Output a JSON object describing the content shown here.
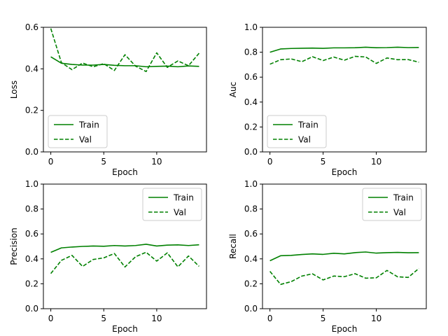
{
  "colors": {
    "series": "#008000",
    "axis": "#000000",
    "legend_frame": "#cccccc"
  },
  "chart_data": [
    {
      "type": "line",
      "xlabel": "Epoch",
      "ylabel": "Loss",
      "xlim": [
        -0.7,
        14.7
      ],
      "ylim": [
        0,
        0.6
      ],
      "xticks": [
        0,
        5,
        10
      ],
      "yticks": [
        0.0,
        0.2,
        0.4,
        0.6
      ],
      "ytick_labels": [
        "0.0",
        "0.2",
        "0.4",
        "0.6"
      ],
      "grid": false,
      "legend_position": "lower left",
      "x": [
        0,
        1,
        2,
        3,
        4,
        5,
        6,
        7,
        8,
        9,
        10,
        11,
        12,
        13,
        14
      ],
      "series": [
        {
          "name": "Train",
          "style": "solid",
          "values": [
            0.458,
            0.427,
            0.421,
            0.418,
            0.418,
            0.421,
            0.417,
            0.415,
            0.415,
            0.41,
            0.412,
            0.413,
            0.41,
            0.414,
            0.412
          ]
        },
        {
          "name": "Val",
          "style": "dashed",
          "values": [
            0.594,
            0.43,
            0.396,
            0.428,
            0.41,
            0.425,
            0.392,
            0.468,
            0.413,
            0.387,
            0.477,
            0.407,
            0.438,
            0.415,
            0.475
          ]
        }
      ]
    },
    {
      "type": "line",
      "xlabel": "Epoch",
      "ylabel": "Auc",
      "xlim": [
        -0.7,
        14.7
      ],
      "ylim": [
        0,
        1
      ],
      "xticks": [
        0,
        5,
        10
      ],
      "yticks": [
        0.0,
        0.2,
        0.4,
        0.6,
        0.8,
        1.0
      ],
      "ytick_labels": [
        "0.0",
        "0.2",
        "0.4",
        "0.6",
        "0.8",
        "1.0"
      ],
      "grid": false,
      "legend_position": "lower left",
      "x": [
        0,
        1,
        2,
        3,
        4,
        5,
        6,
        7,
        8,
        9,
        10,
        11,
        12,
        13,
        14
      ],
      "series": [
        {
          "name": "Train",
          "style": "solid",
          "values": [
            0.8,
            0.826,
            0.83,
            0.832,
            0.833,
            0.831,
            0.835,
            0.835,
            0.836,
            0.84,
            0.836,
            0.837,
            0.84,
            0.837,
            0.838
          ]
        },
        {
          "name": "Val",
          "style": "dashed",
          "values": [
            0.704,
            0.74,
            0.746,
            0.724,
            0.764,
            0.733,
            0.761,
            0.736,
            0.767,
            0.762,
            0.71,
            0.754,
            0.74,
            0.741,
            0.72
          ]
        }
      ]
    },
    {
      "type": "line",
      "xlabel": "Epoch",
      "ylabel": "Precision",
      "xlim": [
        -0.7,
        14.7
      ],
      "ylim": [
        0,
        1
      ],
      "xticks": [
        0,
        5,
        10
      ],
      "yticks": [
        0.0,
        0.2,
        0.4,
        0.6,
        0.8,
        1.0
      ],
      "ytick_labels": [
        "0.0",
        "0.2",
        "0.4",
        "0.6",
        "0.8",
        "1.0"
      ],
      "grid": false,
      "legend_position": "upper right",
      "x": [
        0,
        1,
        2,
        3,
        4,
        5,
        6,
        7,
        8,
        9,
        10,
        11,
        12,
        13,
        14
      ],
      "series": [
        {
          "name": "Train",
          "style": "solid",
          "values": [
            0.452,
            0.488,
            0.495,
            0.5,
            0.503,
            0.501,
            0.507,
            0.503,
            0.507,
            0.517,
            0.503,
            0.51,
            0.512,
            0.507,
            0.513
          ]
        },
        {
          "name": "Val",
          "style": "dashed",
          "values": [
            0.282,
            0.388,
            0.428,
            0.339,
            0.395,
            0.408,
            0.443,
            0.335,
            0.417,
            0.453,
            0.382,
            0.448,
            0.336,
            0.423,
            0.34
          ]
        }
      ]
    },
    {
      "type": "line",
      "xlabel": "Epoch",
      "ylabel": "Recall",
      "xlim": [
        -0.7,
        14.7
      ],
      "ylim": [
        0,
        1
      ],
      "xticks": [
        0,
        5,
        10
      ],
      "yticks": [
        0.0,
        0.2,
        0.4,
        0.6,
        0.8,
        1.0
      ],
      "ytick_labels": [
        "0.0",
        "0.2",
        "0.4",
        "0.6",
        "0.8",
        "1.0"
      ],
      "grid": false,
      "legend_position": "upper right",
      "x": [
        0,
        1,
        2,
        3,
        4,
        5,
        6,
        7,
        8,
        9,
        10,
        11,
        12,
        13,
        14
      ],
      "series": [
        {
          "name": "Train",
          "style": "solid",
          "values": [
            0.385,
            0.425,
            0.428,
            0.435,
            0.44,
            0.436,
            0.445,
            0.44,
            0.45,
            0.455,
            0.446,
            0.45,
            0.452,
            0.449,
            0.45
          ]
        },
        {
          "name": "Val",
          "style": "dashed",
          "values": [
            0.3,
            0.195,
            0.217,
            0.262,
            0.28,
            0.231,
            0.262,
            0.257,
            0.281,
            0.245,
            0.248,
            0.307,
            0.256,
            0.251,
            0.323
          ]
        }
      ]
    }
  ]
}
